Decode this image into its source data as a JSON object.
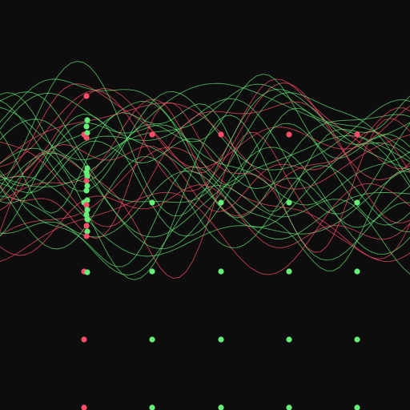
{
  "colors": {
    "background": "#0d0d0d",
    "red": "#ff4d6a",
    "green": "#66f07a"
  }
}
